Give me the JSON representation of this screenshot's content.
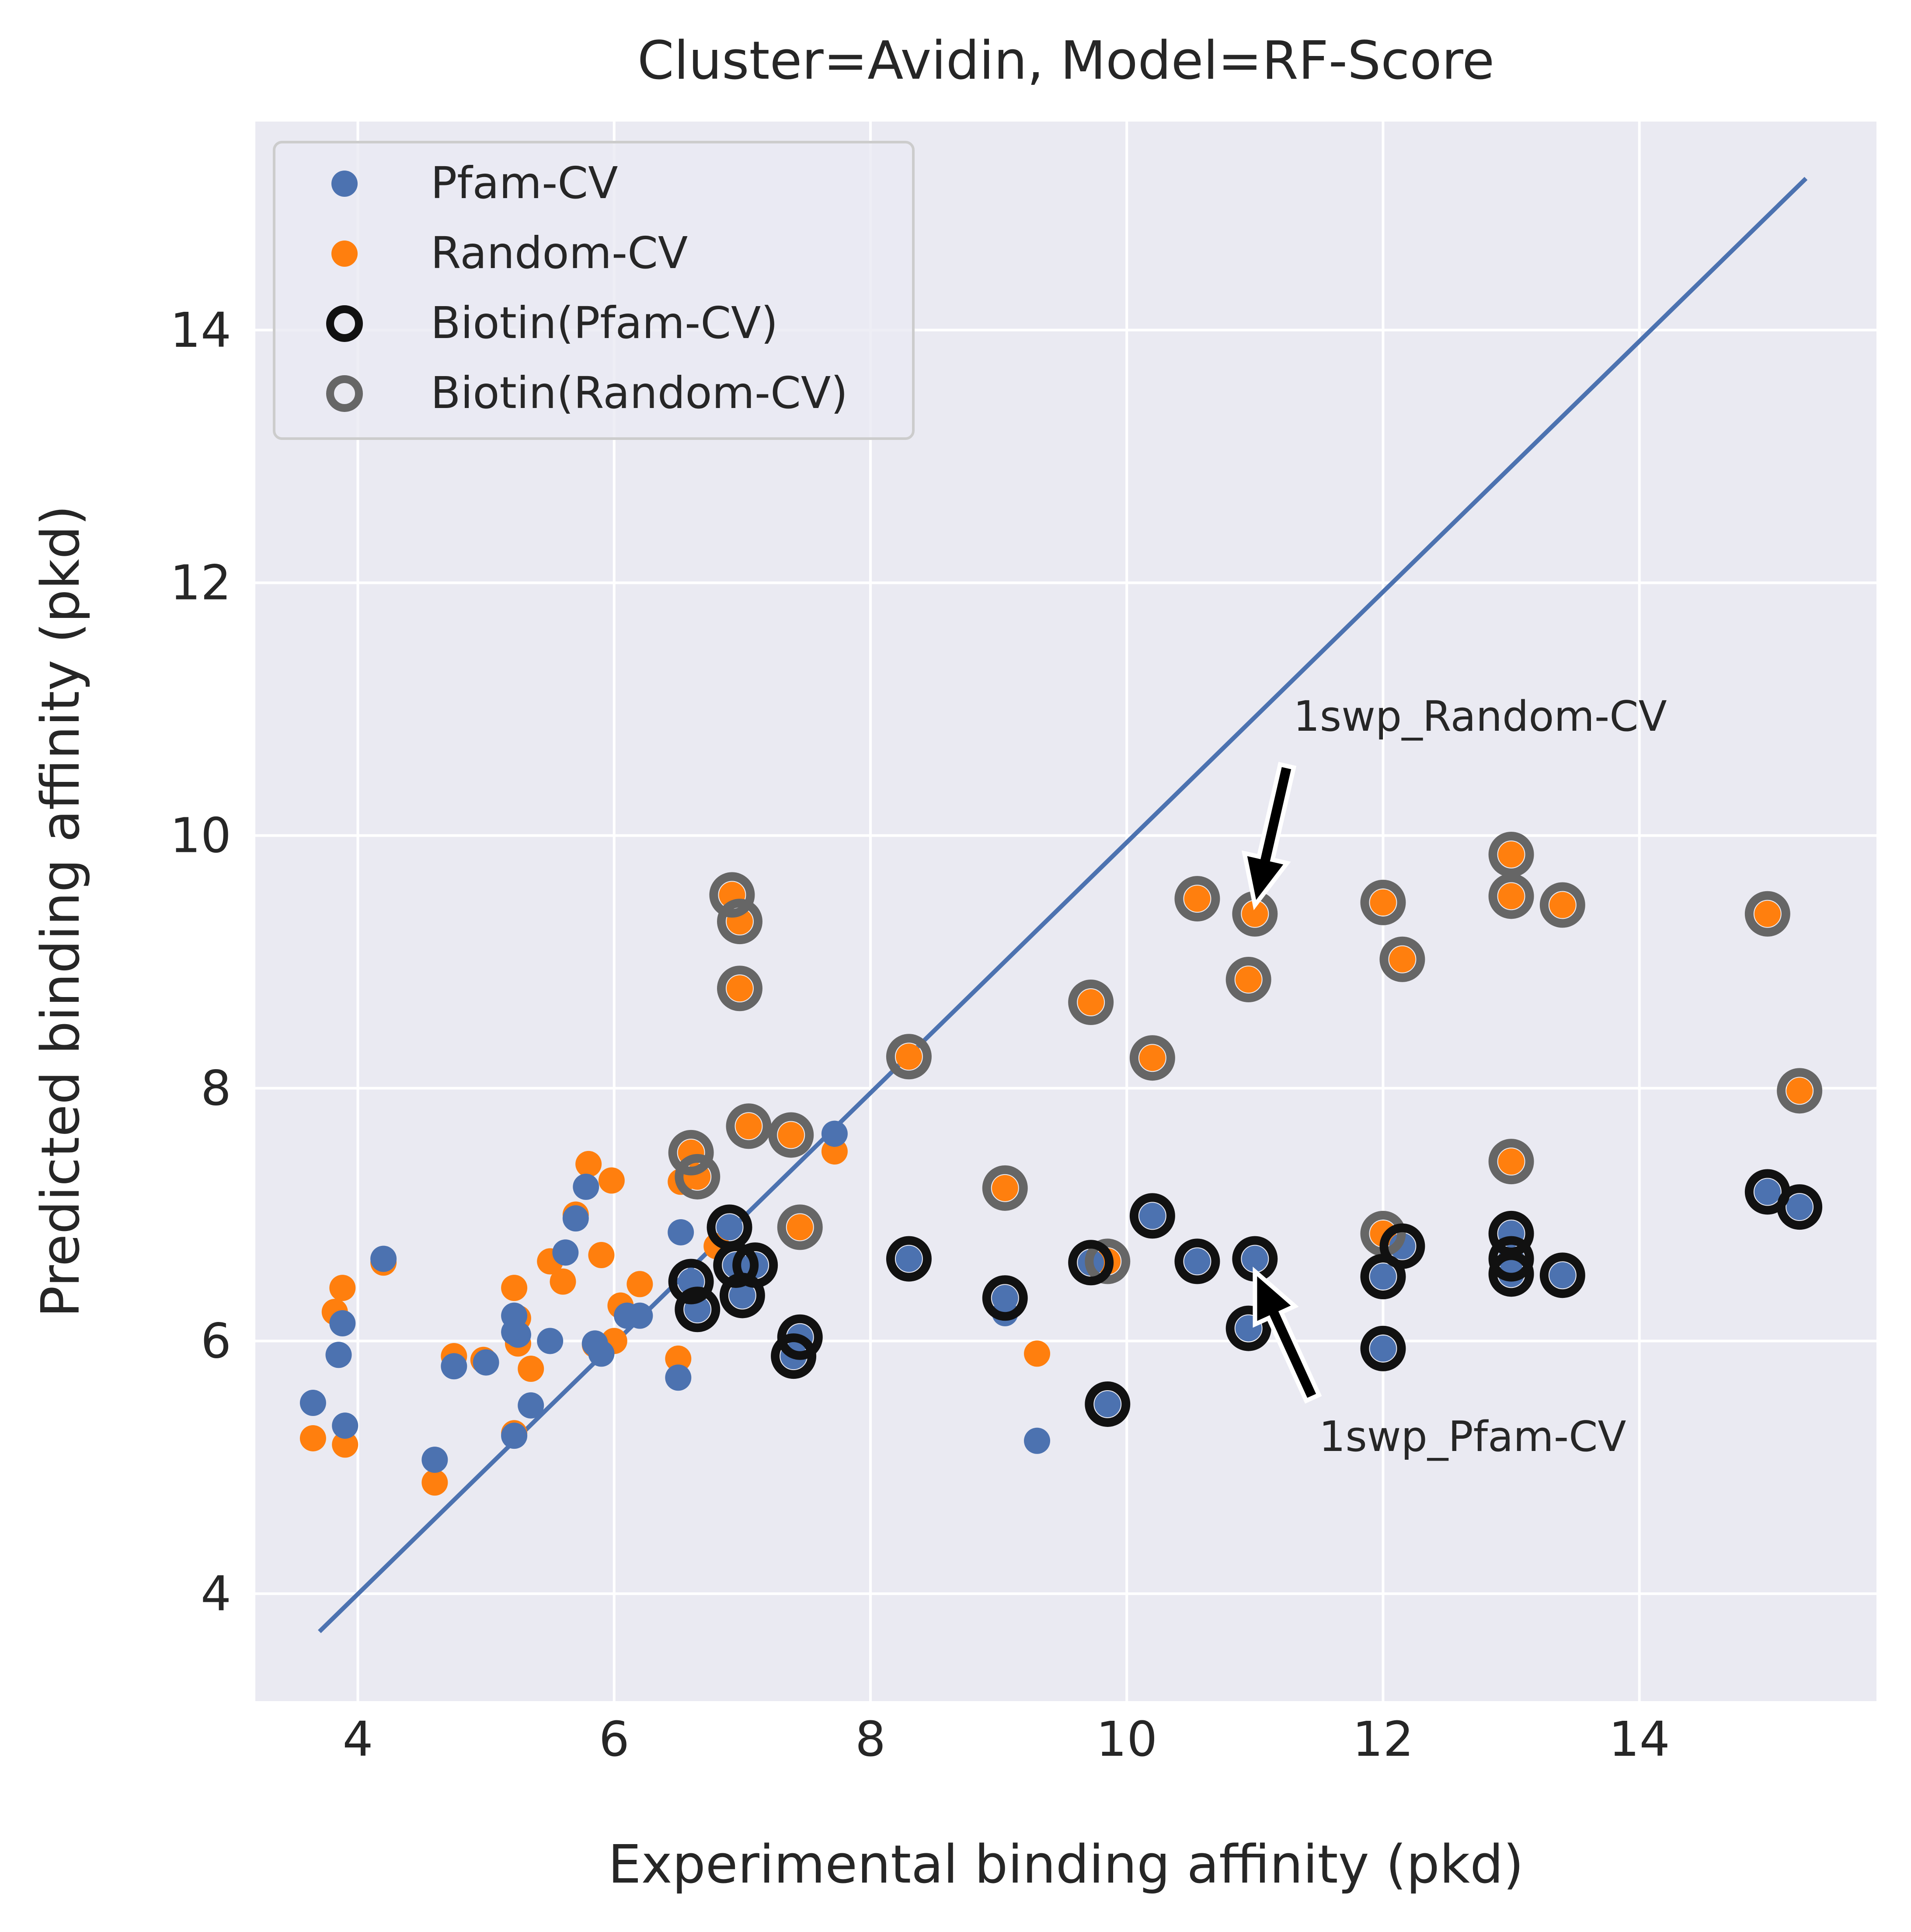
{
  "chart_data": {
    "type": "scatter",
    "title": "Cluster=Avidin, Model=RF-Score",
    "xlabel": "Experimental binding affinity (pkd)",
    "ylabel": "Predicted binding affinity (pkd)",
    "xlim": [
      3.2,
      15.85
    ],
    "ylim": [
      3.15,
      15.65
    ],
    "xticks": [
      4,
      6,
      8,
      10,
      12,
      14
    ],
    "yticks": [
      4,
      6,
      8,
      10,
      12,
      14
    ],
    "grid": true,
    "legend_position": "top-left",
    "colors": {
      "background": "#eaeaf2",
      "grid": "#ffffff",
      "pfam": "#4c72b0",
      "random": "#ff7f0e",
      "biotin_pfam_edge": "#111111",
      "biotin_random_edge": "#666666",
      "identity_line": "#4c72b0"
    },
    "legend": [
      {
        "label": "Pfam-CV",
        "style": "filled",
        "color": "#4c72b0"
      },
      {
        "label": "Random-CV",
        "style": "filled",
        "color": "#ff7f0e"
      },
      {
        "label": "Biotin(Pfam-CV)",
        "style": "ring",
        "color": "#111111"
      },
      {
        "label": "Biotin(Random-CV)",
        "style": "ring",
        "color": "#666666"
      }
    ],
    "identity_line": {
      "x": [
        3.7,
        15.3
      ],
      "y": [
        3.7,
        15.2
      ]
    },
    "series": [
      {
        "name": "Pfam-CV",
        "points": [
          [
            3.65,
            5.51
          ],
          [
            3.85,
            5.89
          ],
          [
            3.88,
            6.14
          ],
          [
            3.9,
            5.33
          ],
          [
            4.2,
            6.65
          ],
          [
            4.6,
            5.06
          ],
          [
            4.75,
            5.8
          ],
          [
            5.0,
            5.83
          ],
          [
            5.22,
            6.2
          ],
          [
            5.22,
            6.07
          ],
          [
            5.25,
            6.05
          ],
          [
            5.22,
            5.25
          ],
          [
            5.35,
            5.49
          ],
          [
            5.5,
            6.0
          ],
          [
            5.62,
            6.7
          ],
          [
            5.7,
            6.97
          ],
          [
            5.78,
            7.22
          ],
          [
            5.85,
            5.98
          ],
          [
            5.9,
            5.9
          ],
          [
            6.1,
            6.2
          ],
          [
            6.2,
            6.2
          ],
          [
            6.5,
            5.71
          ],
          [
            6.52,
            6.86
          ],
          [
            6.6,
            6.47
          ],
          [
            6.65,
            6.25
          ],
          [
            6.9,
            6.9
          ],
          [
            6.95,
            6.6
          ],
          [
            7.0,
            6.36
          ],
          [
            7.1,
            6.6
          ],
          [
            7.4,
            5.88
          ],
          [
            7.45,
            6.03
          ],
          [
            7.72,
            7.64
          ],
          [
            8.3,
            6.65
          ],
          [
            9.05,
            6.34
          ],
          [
            9.05,
            6.22
          ],
          [
            9.3,
            5.21
          ],
          [
            9.72,
            6.62
          ],
          [
            9.85,
            5.5
          ],
          [
            10.2,
            6.99
          ],
          [
            10.55,
            6.63
          ],
          [
            10.95,
            6.1
          ],
          [
            11.0,
            6.65
          ],
          [
            12.0,
            6.51
          ],
          [
            12.0,
            5.94
          ],
          [
            12.15,
            6.75
          ],
          [
            13.0,
            6.85
          ],
          [
            13.0,
            6.65
          ],
          [
            13.0,
            6.53
          ],
          [
            13.4,
            6.52
          ],
          [
            15.0,
            7.18
          ],
          [
            15.25,
            7.06
          ]
        ]
      },
      {
        "name": "Random-CV",
        "points": [
          [
            3.65,
            5.23
          ],
          [
            3.82,
            6.23
          ],
          [
            3.88,
            6.42
          ],
          [
            3.9,
            5.18
          ],
          [
            4.2,
            6.62
          ],
          [
            4.6,
            4.88
          ],
          [
            4.75,
            5.88
          ],
          [
            4.98,
            5.85
          ],
          [
            5.22,
            6.42
          ],
          [
            5.22,
            5.27
          ],
          [
            5.25,
            6.18
          ],
          [
            5.25,
            5.98
          ],
          [
            5.35,
            5.78
          ],
          [
            5.5,
            6.63
          ],
          [
            5.6,
            6.47
          ],
          [
            5.7,
            7.0
          ],
          [
            5.8,
            7.4
          ],
          [
            5.85,
            5.97
          ],
          [
            5.9,
            6.68
          ],
          [
            5.98,
            7.27
          ],
          [
            6.0,
            6.0
          ],
          [
            6.05,
            6.28
          ],
          [
            6.2,
            6.45
          ],
          [
            6.5,
            5.86
          ],
          [
            6.52,
            7.26
          ],
          [
            6.6,
            7.49
          ],
          [
            6.65,
            7.3
          ],
          [
            6.8,
            6.75
          ],
          [
            6.92,
            9.53
          ],
          [
            6.98,
            9.32
          ],
          [
            6.98,
            8.79
          ],
          [
            7.05,
            7.7
          ],
          [
            7.38,
            7.63
          ],
          [
            7.45,
            6.9
          ],
          [
            7.72,
            7.5
          ],
          [
            8.3,
            8.25
          ],
          [
            9.05,
            7.21
          ],
          [
            9.05,
            6.34
          ],
          [
            9.3,
            5.9
          ],
          [
            9.72,
            8.68
          ],
          [
            9.85,
            6.63
          ],
          [
            10.2,
            8.24
          ],
          [
            10.55,
            9.5
          ],
          [
            11.0,
            9.38
          ],
          [
            10.95,
            8.86
          ],
          [
            12.0,
            9.47
          ],
          [
            12.0,
            6.85
          ],
          [
            12.15,
            9.02
          ],
          [
            13.0,
            9.85
          ],
          [
            13.0,
            9.52
          ],
          [
            13.0,
            7.42
          ],
          [
            13.4,
            9.45
          ],
          [
            15.0,
            9.38
          ],
          [
            15.25,
            7.98
          ]
        ]
      },
      {
        "name": "Biotin(Pfam-CV)",
        "points": [
          [
            6.6,
            6.47
          ],
          [
            6.65,
            6.25
          ],
          [
            6.9,
            6.9
          ],
          [
            6.95,
            6.6
          ],
          [
            7.0,
            6.36
          ],
          [
            7.1,
            6.6
          ],
          [
            7.4,
            5.88
          ],
          [
            7.45,
            6.03
          ],
          [
            8.3,
            6.65
          ],
          [
            9.05,
            6.34
          ],
          [
            9.72,
            6.62
          ],
          [
            9.85,
            5.5
          ],
          [
            10.2,
            6.99
          ],
          [
            10.55,
            6.63
          ],
          [
            10.95,
            6.1
          ],
          [
            11.0,
            6.65
          ],
          [
            12.0,
            6.51
          ],
          [
            12.0,
            5.94
          ],
          [
            12.15,
            6.75
          ],
          [
            13.0,
            6.85
          ],
          [
            13.0,
            6.65
          ],
          [
            13.0,
            6.53
          ],
          [
            13.4,
            6.52
          ],
          [
            15.0,
            7.18
          ],
          [
            15.25,
            7.06
          ]
        ]
      },
      {
        "name": "Biotin(Random-CV)",
        "points": [
          [
            6.6,
            7.49
          ],
          [
            6.65,
            7.3
          ],
          [
            6.92,
            9.53
          ],
          [
            6.98,
            9.32
          ],
          [
            6.98,
            8.79
          ],
          [
            7.05,
            7.7
          ],
          [
            7.38,
            7.63
          ],
          [
            7.45,
            6.9
          ],
          [
            8.3,
            8.25
          ],
          [
            9.05,
            7.21
          ],
          [
            9.72,
            8.68
          ],
          [
            9.85,
            6.63
          ],
          [
            10.2,
            8.24
          ],
          [
            10.55,
            9.5
          ],
          [
            11.0,
            9.38
          ],
          [
            10.95,
            8.86
          ],
          [
            12.0,
            9.47
          ],
          [
            12.0,
            6.85
          ],
          [
            12.15,
            9.02
          ],
          [
            13.0,
            9.85
          ],
          [
            13.0,
            9.52
          ],
          [
            13.0,
            7.42
          ],
          [
            13.4,
            9.45
          ],
          [
            15.0,
            9.38
          ],
          [
            15.25,
            7.98
          ]
        ]
      }
    ],
    "annotations": [
      {
        "text": "1swp_Random-CV",
        "text_at": [
          11.3,
          10.95
        ],
        "arrow_tail": [
          11.25,
          10.55
        ],
        "arrow_head": [
          11.0,
          9.45
        ]
      },
      {
        "text": "1swp_Pfam-CV",
        "text_at": [
          11.5,
          5.25
        ],
        "arrow_tail": [
          11.45,
          5.55
        ],
        "arrow_head": [
          11.0,
          6.55
        ]
      }
    ]
  }
}
